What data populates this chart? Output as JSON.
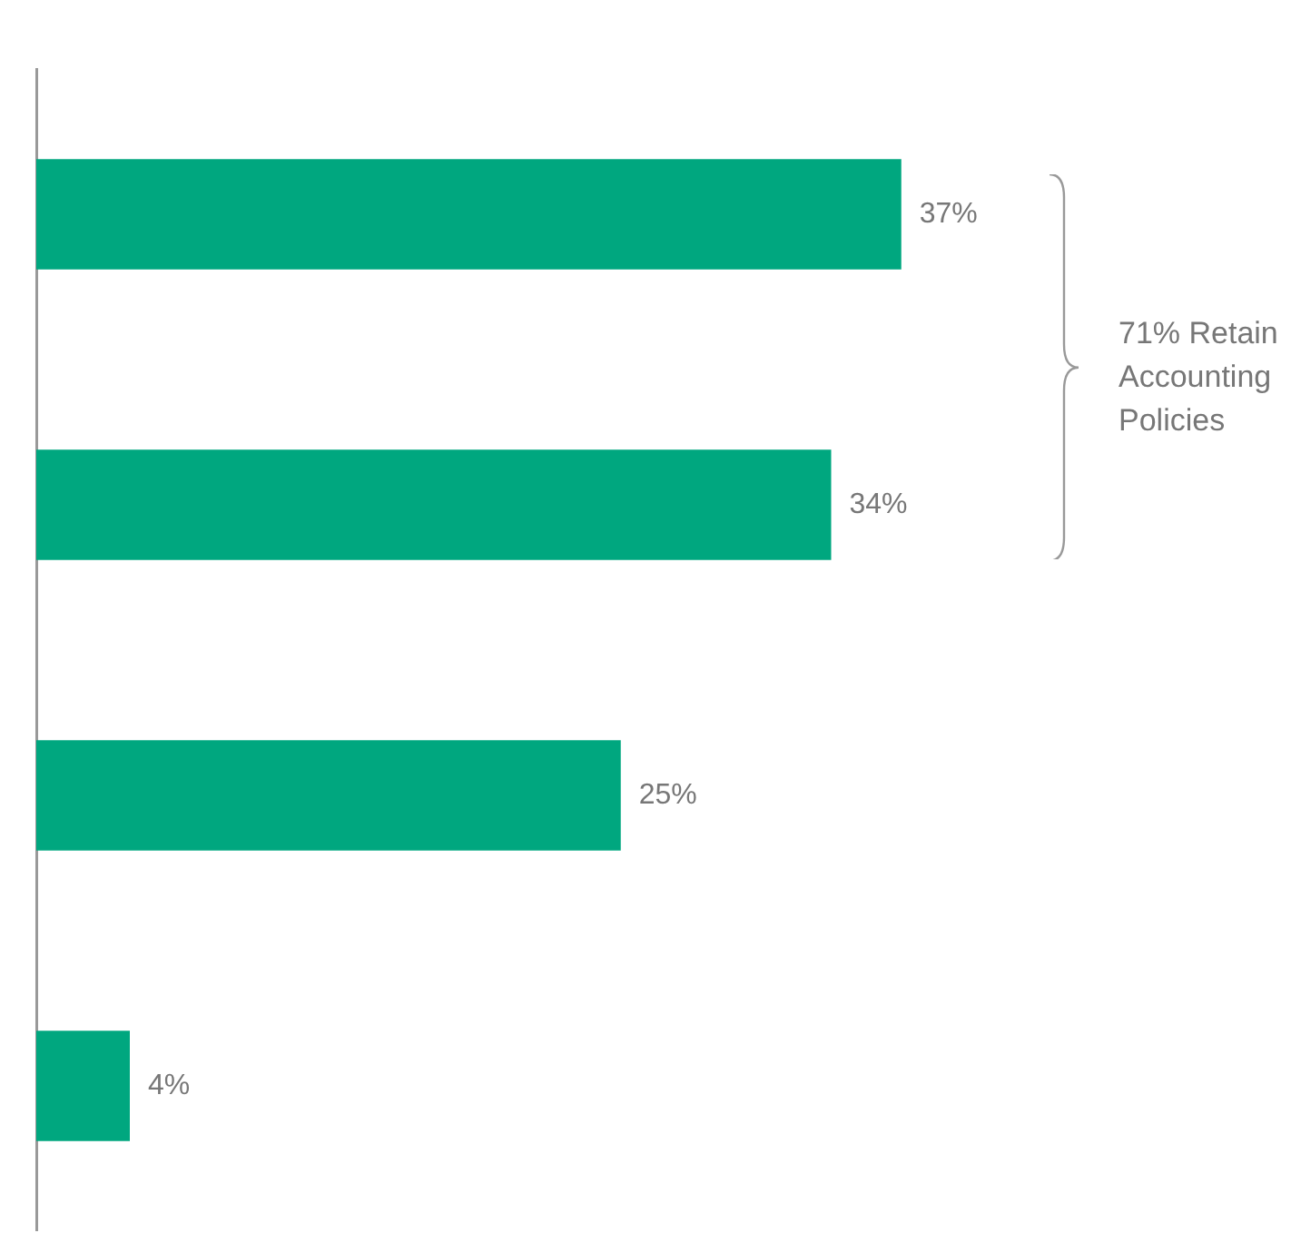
{
  "chart_data": {
    "type": "bar",
    "orientation": "horizontal",
    "categories": [
      null,
      null,
      null,
      null
    ],
    "values": [
      37,
      34,
      25,
      4
    ],
    "color": "#00a77f",
    "value_labels": [
      "37%",
      "34%",
      "25%",
      "4%"
    ],
    "annotations": [
      "71% Retain Accounting Policies"
    ]
  }
}
